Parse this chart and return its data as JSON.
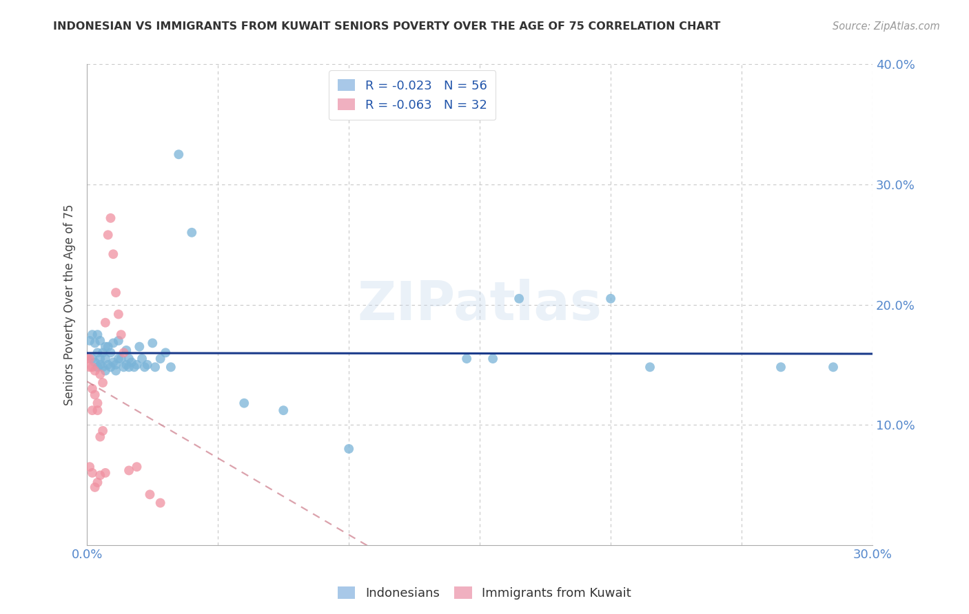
{
  "title": "INDONESIAN VS IMMIGRANTS FROM KUWAIT SENIORS POVERTY OVER THE AGE OF 75 CORRELATION CHART",
  "source": "Source: ZipAtlas.com",
  "ylabel": "Seniors Poverty Over the Age of 75",
  "xlim": [
    0.0,
    0.3
  ],
  "ylim": [
    0.0,
    0.4
  ],
  "indonesian_x": [
    0.001,
    0.002,
    0.002,
    0.003,
    0.003,
    0.004,
    0.004,
    0.004,
    0.005,
    0.005,
    0.005,
    0.006,
    0.006,
    0.007,
    0.007,
    0.007,
    0.008,
    0.008,
    0.009,
    0.009,
    0.01,
    0.01,
    0.011,
    0.011,
    0.012,
    0.012,
    0.013,
    0.014,
    0.015,
    0.015,
    0.016,
    0.016,
    0.017,
    0.018,
    0.019,
    0.02,
    0.021,
    0.022,
    0.023,
    0.025,
    0.026,
    0.028,
    0.03,
    0.032,
    0.035,
    0.04,
    0.06,
    0.075,
    0.1,
    0.145,
    0.155,
    0.165,
    0.2,
    0.215,
    0.265,
    0.285
  ],
  "indonesian_y": [
    0.17,
    0.155,
    0.175,
    0.152,
    0.168,
    0.148,
    0.16,
    0.175,
    0.15,
    0.155,
    0.17,
    0.148,
    0.16,
    0.145,
    0.155,
    0.165,
    0.15,
    0.165,
    0.148,
    0.16,
    0.152,
    0.168,
    0.15,
    0.145,
    0.155,
    0.17,
    0.155,
    0.148,
    0.15,
    0.162,
    0.155,
    0.148,
    0.152,
    0.148,
    0.15,
    0.165,
    0.155,
    0.148,
    0.15,
    0.168,
    0.148,
    0.155,
    0.16,
    0.148,
    0.325,
    0.26,
    0.118,
    0.112,
    0.08,
    0.155,
    0.155,
    0.205,
    0.205,
    0.148,
    0.148,
    0.148
  ],
  "kuwait_x": [
    0.0,
    0.001,
    0.001,
    0.001,
    0.002,
    0.002,
    0.002,
    0.002,
    0.003,
    0.003,
    0.003,
    0.004,
    0.004,
    0.004,
    0.005,
    0.005,
    0.005,
    0.006,
    0.006,
    0.007,
    0.007,
    0.008,
    0.009,
    0.01,
    0.011,
    0.012,
    0.013,
    0.014,
    0.016,
    0.019,
    0.024,
    0.028
  ],
  "kuwait_y": [
    0.155,
    0.148,
    0.155,
    0.065,
    0.148,
    0.13,
    0.112,
    0.06,
    0.145,
    0.125,
    0.048,
    0.118,
    0.112,
    0.052,
    0.142,
    0.09,
    0.058,
    0.135,
    0.095,
    0.185,
    0.06,
    0.258,
    0.272,
    0.242,
    0.21,
    0.192,
    0.175,
    0.16,
    0.062,
    0.065,
    0.042,
    0.035
  ],
  "blue_scatter_color": "#7ab4d8",
  "pink_scatter_color": "#f090a0",
  "blue_line_color": "#1a3a8a",
  "pink_line_color": "#c87080",
  "watermark_text": "ZIPatlas",
  "background_color": "#ffffff",
  "grid_color": "#c8c8c8",
  "title_color": "#333333",
  "source_color": "#999999",
  "tick_color": "#5588cc",
  "ylabel_color": "#444444"
}
